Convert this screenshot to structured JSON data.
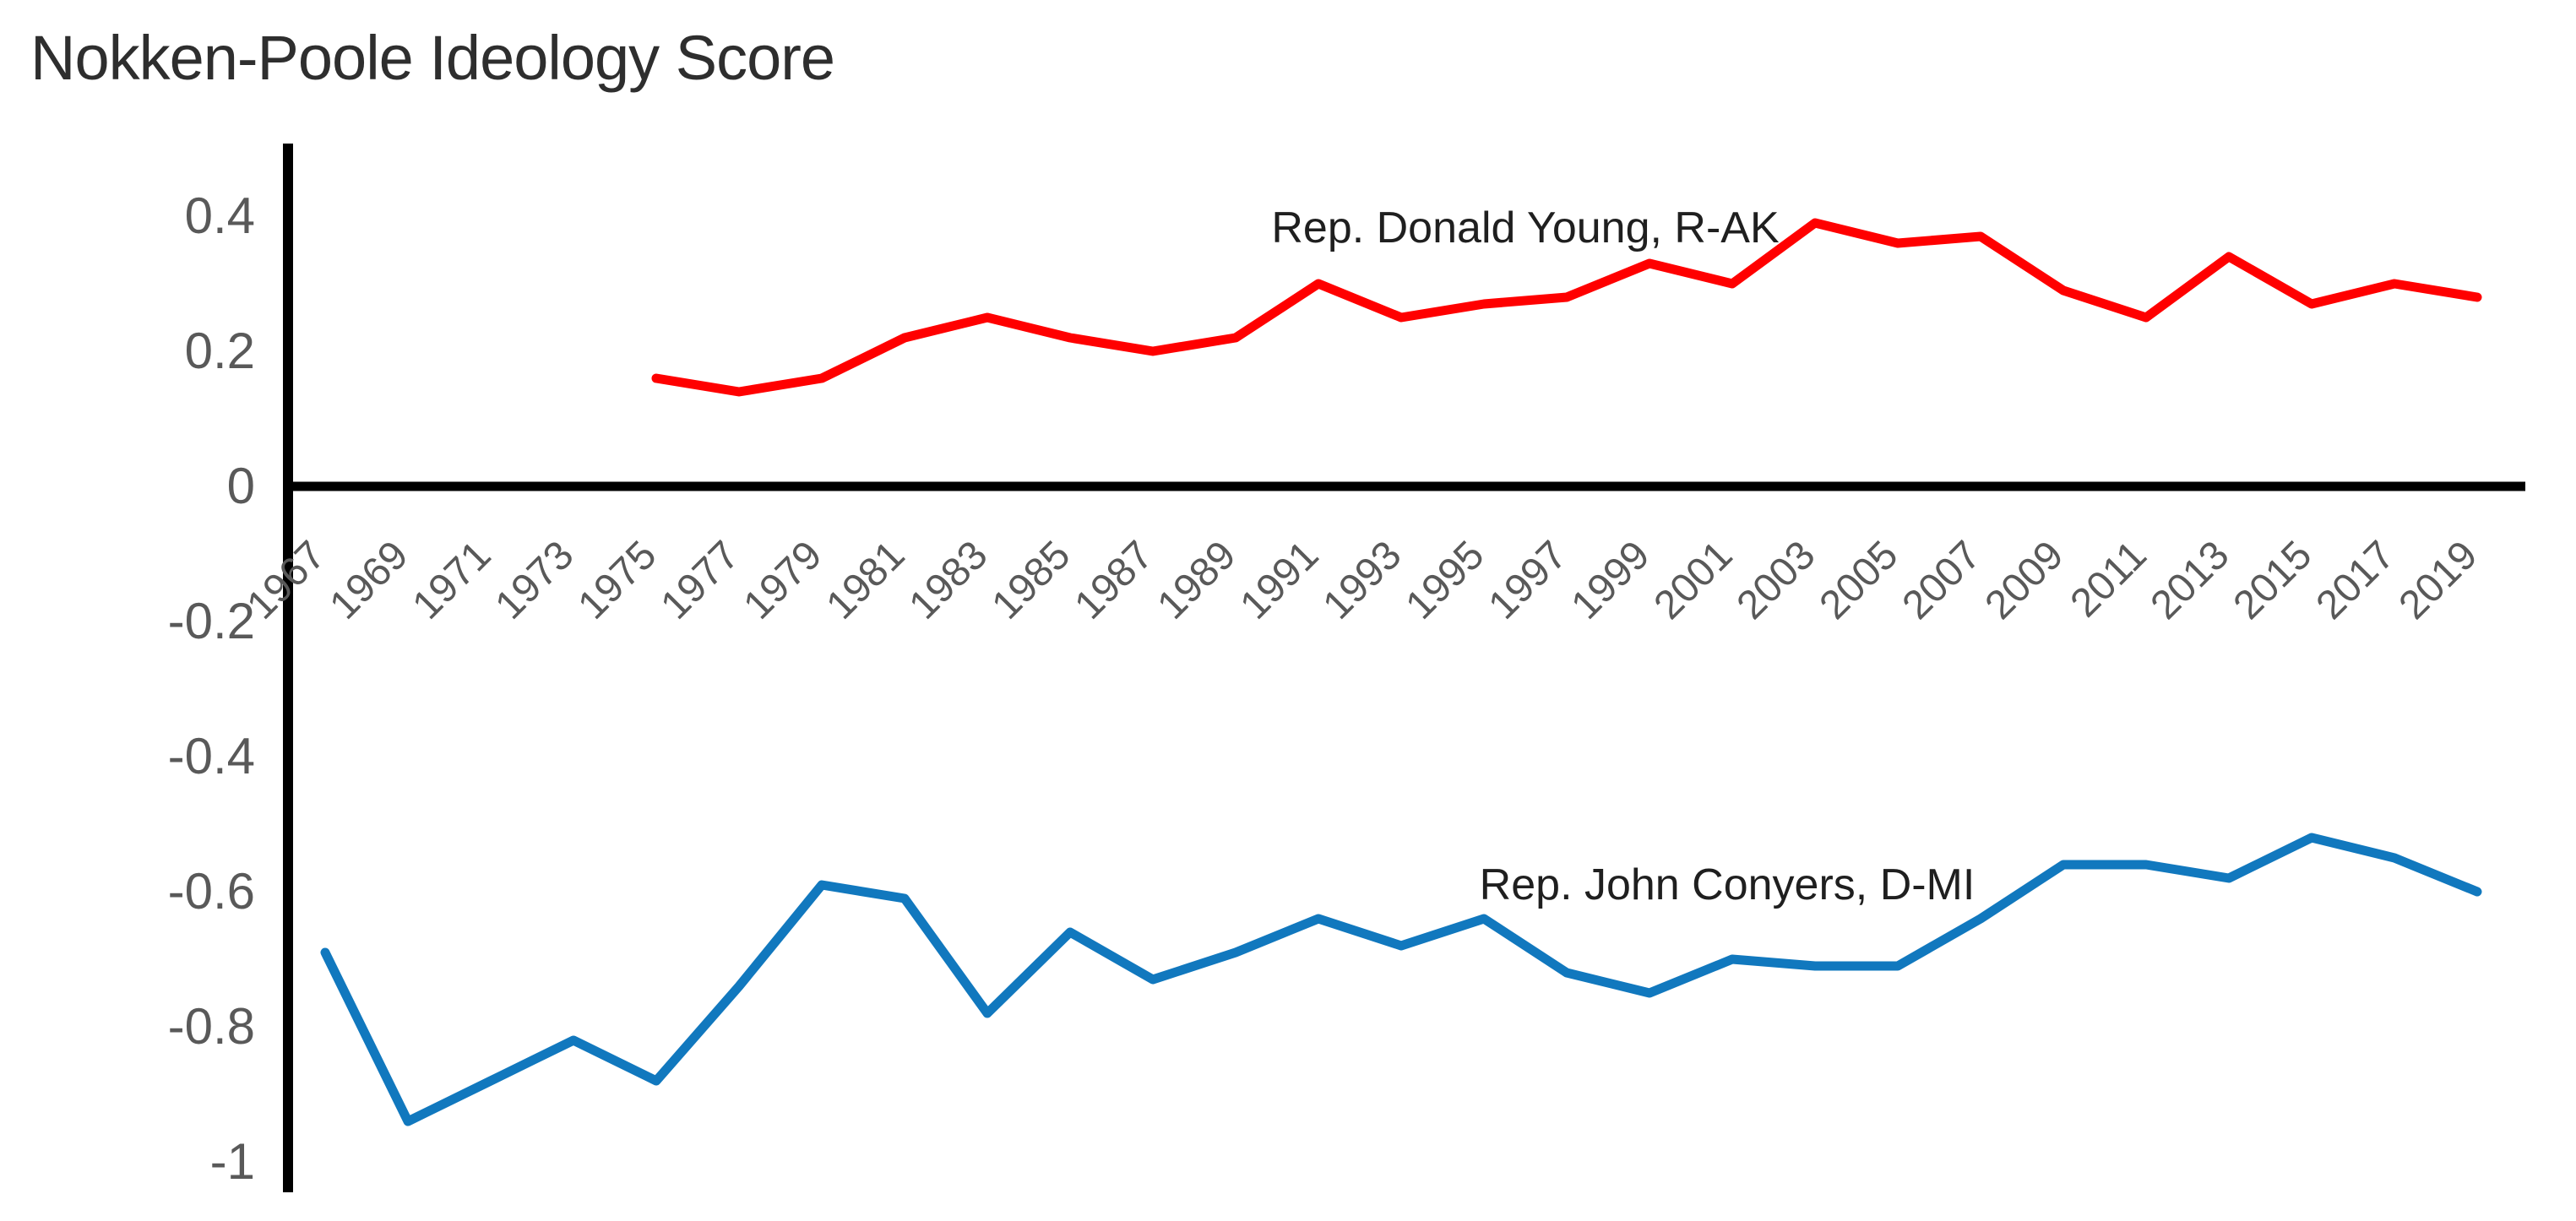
{
  "title": "Nokken-Poole Ideology Score",
  "colors": {
    "young_line": "#ff0000",
    "conyers_line": "#1178be",
    "axis": "#000000",
    "tick_text": "#595959",
    "title_text": "#2e2e2e"
  },
  "chart_data": {
    "type": "line",
    "title": "Nokken-Poole Ideology Score",
    "xlabel": "",
    "ylabel": "",
    "grid": false,
    "legend_position": "inline-annotations",
    "x": [
      1967,
      1969,
      1971,
      1973,
      1975,
      1977,
      1979,
      1981,
      1983,
      1985,
      1987,
      1989,
      1991,
      1993,
      1995,
      1997,
      1999,
      2001,
      2003,
      2005,
      2007,
      2009,
      2011,
      2013,
      2015,
      2017,
      2019
    ],
    "x_tick_labels": [
      "1967",
      "1969",
      "1971",
      "1973",
      "1975",
      "1977",
      "1979",
      "1981",
      "1983",
      "1985",
      "1987",
      "1989",
      "1991",
      "1993",
      "1995",
      "1997",
      "1999",
      "2001",
      "2003",
      "2005",
      "2007",
      "2009",
      "2011",
      "2013",
      "2015",
      "2017",
      "2019"
    ],
    "y_axis": {
      "ticks": [
        0.4,
        0.2,
        0,
        -0.2,
        -0.4,
        -0.6,
        -0.8,
        -1
      ],
      "tick_labels": [
        "0.4",
        "0.2",
        "0",
        "-0.2",
        "-0.4",
        "-0.6",
        "-0.8",
        "-1"
      ],
      "range": [
        -1.0,
        0.45
      ]
    },
    "series": [
      {
        "name": "Rep. Donald Young, R-AK",
        "color": "#ff0000",
        "values": [
          null,
          null,
          null,
          null,
          0.16,
          0.14,
          0.16,
          0.22,
          0.25,
          0.22,
          0.2,
          0.22,
          0.3,
          0.25,
          0.27,
          0.28,
          0.33,
          0.3,
          0.39,
          0.36,
          0.37,
          0.29,
          0.25,
          0.34,
          0.27,
          0.3,
          0.28
        ]
      },
      {
        "name": "Rep. John Conyers, D-MI",
        "color": "#1178be",
        "values": [
          -0.69,
          -0.94,
          -0.88,
          -0.82,
          -0.88,
          -0.74,
          -0.59,
          -0.61,
          -0.78,
          -0.66,
          -0.73,
          -0.69,
          -0.64,
          -0.68,
          -0.64,
          -0.72,
          -0.75,
          -0.7,
          -0.71,
          -0.71,
          -0.64,
          -0.56,
          -0.56,
          -0.58,
          -0.52,
          -0.55,
          -0.6
        ]
      }
    ]
  }
}
